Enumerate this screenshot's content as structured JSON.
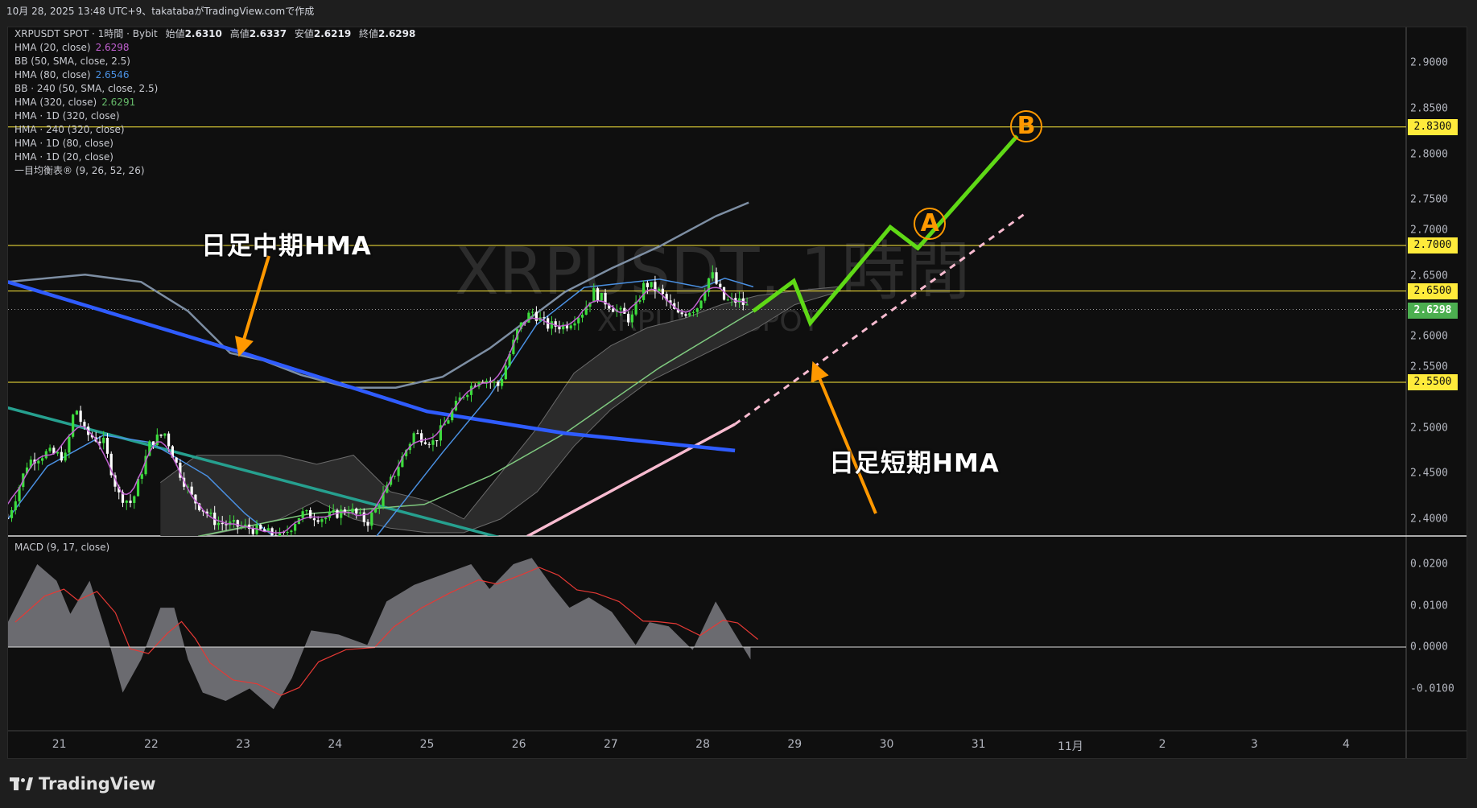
{
  "header": {
    "caption": "10月 28, 2025 13:48 UTC+9、takatabaがTradingView.comで作成"
  },
  "legend": {
    "symbol_line": "XRPUSDT SPOT · 1時間 · Bybit",
    "ohlc": [
      {
        "label": "始値",
        "value": "2.6310"
      },
      {
        "label": "高値",
        "value": "2.6337"
      },
      {
        "label": "安値",
        "value": "2.6219"
      },
      {
        "label": "終値",
        "value": "2.6298"
      }
    ],
    "indicators": [
      {
        "name": "HMA (20, close)",
        "value": "2.6298",
        "color": "#c060d0"
      },
      {
        "name": "BB (50, SMA, close, 2.5)",
        "value": ""
      },
      {
        "name": "HMA (80, close)",
        "value": "2.6546",
        "color": "#4a90e2"
      },
      {
        "name": "BB · 240 (50, SMA, close, 2.5)",
        "value": ""
      },
      {
        "name": "HMA (320, close)",
        "value": "2.6291",
        "color": "#66bb6a"
      },
      {
        "name": "HMA · 1D (320, close)",
        "value": ""
      },
      {
        "name": "HMA · 240 (320, close)",
        "value": ""
      },
      {
        "name": "HMA · 1D (80, close)",
        "value": ""
      },
      {
        "name": "HMA · 1D (20, close)",
        "value": ""
      },
      {
        "name": "一目均衡表® (9, 26, 52, 26)",
        "value": ""
      }
    ]
  },
  "watermark": {
    "main": "XRPUSDT, 1時間",
    "sub": "XRPUSDT SPOT"
  },
  "annotations": {
    "mid_hma": "日足中期HMA",
    "short_hma": "日足短期HMA",
    "point_a": "A",
    "point_b": "B"
  },
  "macd_label": "MACD (9, 17, close)",
  "footer": {
    "brand": "TradingView"
  },
  "colors": {
    "up": "#3ddc3d",
    "down": "#ffffff",
    "level": "#ffeb3b",
    "last_price": "#4caf50",
    "projection": "#5fd916",
    "arrow": "#ff9800"
  },
  "chart_data": [
    {
      "type": "candlestick",
      "title": "XRPUSDT SPOT · 1時間 · Bybit",
      "x_unit": "day of month (Oct–Nov 2025)",
      "x_ticks": [
        {
          "day": 21,
          "label": "21"
        },
        {
          "day": 22,
          "label": "22"
        },
        {
          "day": 23,
          "label": "23"
        },
        {
          "day": 24,
          "label": "24"
        },
        {
          "day": 25,
          "label": "25"
        },
        {
          "day": 26,
          "label": "26"
        },
        {
          "day": 27,
          "label": "27"
        },
        {
          "day": 28,
          "label": "28"
        },
        {
          "day": 29,
          "label": "29"
        },
        {
          "day": 30,
          "label": "30"
        },
        {
          "day": 31,
          "label": "31"
        },
        {
          "day": 32,
          "label": "11月"
        },
        {
          "day": 33,
          "label": "2"
        },
        {
          "day": 34,
          "label": "3"
        },
        {
          "day": 35,
          "label": "4"
        }
      ],
      "xlim": [
        20.44,
        36.3
      ],
      "ylim": [
        2.3795,
        2.955
      ],
      "y_ticks": [
        "2.9000",
        "2.8500",
        "2.8000",
        "2.7500",
        "2.7000",
        "2.6500",
        "2.6000",
        "2.5500",
        "2.5000",
        "2.4500",
        "2.4000"
      ],
      "close_path": [
        [
          20.44,
          2.401
        ],
        [
          20.66,
          2.463
        ],
        [
          20.87,
          2.473
        ],
        [
          21.07,
          2.468
        ],
        [
          21.17,
          2.525
        ],
        [
          21.28,
          2.494
        ],
        [
          21.48,
          2.484
        ],
        [
          21.64,
          2.427
        ],
        [
          21.79,
          2.417
        ],
        [
          21.99,
          2.484
        ],
        [
          22.15,
          2.494
        ],
        [
          22.3,
          2.453
        ],
        [
          22.45,
          2.422
        ],
        [
          22.71,
          2.396
        ],
        [
          23.02,
          2.391
        ],
        [
          23.22,
          2.386
        ],
        [
          23.43,
          2.38
        ],
        [
          23.63,
          2.406
        ],
        [
          23.89,
          2.401
        ],
        [
          24.15,
          2.411
        ],
        [
          24.35,
          2.396
        ],
        [
          24.56,
          2.432
        ],
        [
          24.86,
          2.494
        ],
        [
          25.07,
          2.484
        ],
        [
          25.38,
          2.535
        ],
        [
          25.58,
          2.556
        ],
        [
          25.78,
          2.546
        ],
        [
          25.99,
          2.608
        ],
        [
          26.14,
          2.628
        ],
        [
          26.3,
          2.612
        ],
        [
          26.5,
          2.612
        ],
        [
          26.7,
          2.628
        ],
        [
          26.81,
          2.649
        ],
        [
          27.01,
          2.633
        ],
        [
          27.22,
          2.618
        ],
        [
          27.37,
          2.659
        ],
        [
          27.53,
          2.649
        ],
        [
          27.73,
          2.623
        ],
        [
          27.94,
          2.633
        ],
        [
          28.09,
          2.67
        ],
        [
          28.24,
          2.639
        ],
        [
          28.4,
          2.639
        ],
        [
          28.52,
          2.6298
        ]
      ],
      "last_price": "2.6298",
      "levels": [
        "2.8300",
        "2.7000",
        "2.6500",
        "2.5500"
      ],
      "overlays": {
        "hma_1d_80": {
          "color": "#2f5cff",
          "points": [
            [
              20.44,
              2.66
            ],
            [
              23.0,
              2.582
            ],
            [
              25.0,
              2.518
            ],
            [
              26.5,
              2.494
            ],
            [
              28.35,
              2.475
            ]
          ]
        },
        "bb_240_upper": {
          "color": "#7d8ea3",
          "points": [
            [
              20.44,
              2.66
            ],
            [
              21.28,
              2.668
            ],
            [
              21.89,
              2.66
            ],
            [
              22.4,
              2.628
            ],
            [
              22.86,
              2.582
            ],
            [
              23.22,
              2.574
            ],
            [
              23.63,
              2.558
            ],
            [
              24.15,
              2.544
            ],
            [
              24.66,
              2.544
            ],
            [
              25.17,
              2.556
            ],
            [
              25.68,
              2.587
            ],
            [
              26.09,
              2.618
            ],
            [
              26.5,
              2.649
            ],
            [
              27.01,
              2.675
            ],
            [
              27.53,
              2.699
            ],
            [
              28.14,
              2.732
            ],
            [
              28.5,
              2.747
            ]
          ]
        },
        "hma_1d_20": {
          "color": "#f8bbd0",
          "points": [
            [
              26.09,
              2.381
            ],
            [
              28.35,
              2.504
            ]
          ],
          "projection": [
            [
              28.35,
              2.504
            ],
            [
              31.52,
              2.736
            ]
          ]
        },
        "hma_240_320": {
          "color": "#26a08f",
          "points": [
            [
              20.44,
              2.522
            ],
            [
              25.78,
              2.38
            ]
          ]
        },
        "hma_320": {
          "color": "#7fc97f",
          "points": [
            [
              22.51,
              2.381
            ],
            [
              23.74,
              2.406
            ],
            [
              24.97,
              2.416
            ],
            [
              25.68,
              2.447
            ],
            [
              26.5,
              2.494
            ],
            [
              27.53,
              2.566
            ],
            [
              28.55,
              2.628
            ]
          ]
        },
        "hma_80": {
          "color": "#4a90e2",
          "points": [
            [
              20.44,
              2.4
            ],
            [
              20.87,
              2.458
            ],
            [
              21.48,
              2.492
            ],
            [
              21.99,
              2.484
            ],
            [
              22.61,
              2.447
            ],
            [
              23.02,
              2.406
            ],
            [
              23.33,
              2.381
            ]
          ],
          "points2": [
            [
              24.45,
              2.381
            ],
            [
              25.17,
              2.473
            ],
            [
              25.68,
              2.535
            ],
            [
              26.19,
              2.613
            ],
            [
              26.71,
              2.654
            ],
            [
              27.53,
              2.663
            ],
            [
              27.99,
              2.654
            ],
            [
              28.24,
              2.664
            ],
            [
              28.55,
              2.6546
            ]
          ]
        },
        "ichimoku_cloud": {
          "upper": [
            [
              22.1,
              2.44
            ],
            [
              22.5,
              2.47
            ],
            [
              23.0,
              2.47
            ],
            [
              23.4,
              2.47
            ],
            [
              23.8,
              2.46
            ],
            [
              24.2,
              2.47
            ],
            [
              24.6,
              2.43
            ],
            [
              25.0,
              2.42
            ],
            [
              25.4,
              2.4
            ],
            [
              25.8,
              2.45
            ],
            [
              26.2,
              2.5
            ],
            [
              26.6,
              2.56
            ],
            [
              27.0,
              2.59
            ],
            [
              27.4,
              2.61
            ],
            [
              27.8,
              2.62
            ],
            [
              28.2,
              2.635
            ],
            [
              28.6,
              2.645
            ],
            [
              29.0,
              2.65
            ],
            [
              29.5,
              2.655
            ]
          ],
          "lower": [
            [
              22.1,
              2.38
            ],
            [
              22.5,
              2.38
            ],
            [
              23.0,
              2.39
            ],
            [
              23.4,
              2.4
            ],
            [
              23.8,
              2.42
            ],
            [
              24.2,
              2.4
            ],
            [
              24.6,
              2.39
            ],
            [
              25.0,
              2.385
            ],
            [
              25.4,
              2.385
            ],
            [
              25.8,
              2.4
            ],
            [
              26.2,
              2.43
            ],
            [
              26.6,
              2.48
            ],
            [
              27.0,
              2.52
            ],
            [
              27.4,
              2.55
            ],
            [
              27.8,
              2.57
            ],
            [
              28.2,
              2.59
            ],
            [
              28.6,
              2.61
            ],
            [
              29.0,
              2.635
            ],
            [
              29.5,
              2.65
            ]
          ]
        }
      },
      "projection_path": [
        [
          28.55,
          2.628
        ],
        [
          28.99,
          2.661
        ],
        [
          29.17,
          2.615
        ],
        [
          30.04,
          2.72
        ],
        [
          30.34,
          2.697
        ],
        [
          31.42,
          2.82
        ]
      ],
      "targets": [
        {
          "label": "A",
          "day": 30.47,
          "price": 2.724
        },
        {
          "label": "B",
          "day": 31.52,
          "price": 2.831
        }
      ]
    },
    {
      "type": "area",
      "title": "MACD (9, 17, close)",
      "ylim": [
        -0.0175,
        0.0275
      ],
      "y_ticks": [
        "0.0200",
        "0.0100",
        "0.0000",
        "-0.0100"
      ],
      "values": [
        [
          20.44,
          0.006
        ],
        [
          20.76,
          0.02
        ],
        [
          20.97,
          0.016
        ],
        [
          21.12,
          0.008
        ],
        [
          21.33,
          0.016
        ],
        [
          21.53,
          0.002
        ],
        [
          21.69,
          -0.011
        ],
        [
          21.89,
          -0.003
        ],
        [
          22.1,
          0.0095
        ],
        [
          22.25,
          0.0095
        ],
        [
          22.4,
          -0.003
        ],
        [
          22.56,
          -0.011
        ],
        [
          22.81,
          -0.013
        ],
        [
          23.07,
          -0.01
        ],
        [
          23.33,
          -0.015
        ],
        [
          23.53,
          -0.0075
        ],
        [
          23.74,
          0.004
        ],
        [
          24.04,
          0.003
        ],
        [
          24.35,
          0.0005
        ],
        [
          24.56,
          0.011
        ],
        [
          24.86,
          0.015
        ],
        [
          25.17,
          0.0175
        ],
        [
          25.48,
          0.02
        ],
        [
          25.68,
          0.014
        ],
        [
          25.94,
          0.02
        ],
        [
          26.14,
          0.0215
        ],
        [
          26.35,
          0.015
        ],
        [
          26.55,
          0.0095
        ],
        [
          26.76,
          0.012
        ],
        [
          27.01,
          0.0085
        ],
        [
          27.27,
          0.0005
        ],
        [
          27.42,
          0.006
        ],
        [
          27.63,
          0.005
        ],
        [
          27.89,
          -0.0007
        ],
        [
          28.14,
          0.011
        ],
        [
          28.3,
          0.005
        ],
        [
          28.52,
          -0.003
        ]
      ],
      "fill_color": "#6b6b70",
      "signal_color": "#e53935"
    }
  ]
}
